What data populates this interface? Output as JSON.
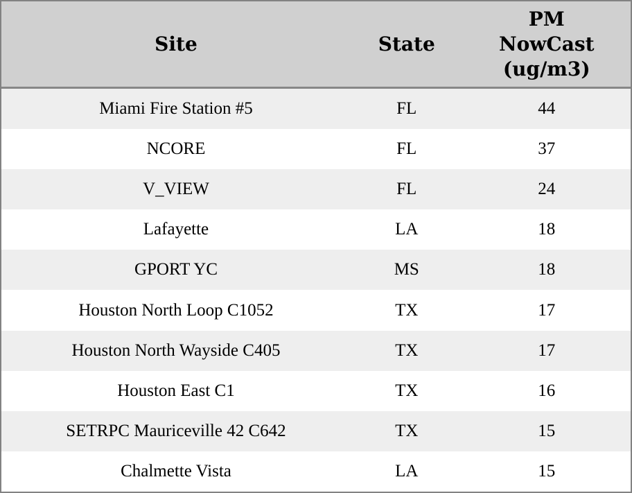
{
  "chart_data": {
    "type": "table",
    "columns": [
      "Site",
      "State",
      "PM NowCast (ug/m3)"
    ],
    "rows": [
      {
        "site": "Miami Fire Station #5",
        "state": "FL",
        "pm_nowcast": "44"
      },
      {
        "site": "NCORE",
        "state": "FL",
        "pm_nowcast": "37"
      },
      {
        "site": "V_VIEW",
        "state": "FL",
        "pm_nowcast": "24"
      },
      {
        "site": "Lafayette",
        "state": "LA",
        "pm_nowcast": "18"
      },
      {
        "site": "GPORT YC",
        "state": "MS",
        "pm_nowcast": "18"
      },
      {
        "site": "Houston North Loop C1052",
        "state": "TX",
        "pm_nowcast": "17"
      },
      {
        "site": "Houston North Wayside C405",
        "state": "TX",
        "pm_nowcast": "17"
      },
      {
        "site": "Houston East C1",
        "state": "TX",
        "pm_nowcast": "16"
      },
      {
        "site": "SETRPC Mauriceville 42 C642",
        "state": "TX",
        "pm_nowcast": "15"
      },
      {
        "site": "Chalmette Vista",
        "state": "LA",
        "pm_nowcast": "15"
      }
    ],
    "title": "",
    "legend": "none",
    "grid": "off"
  },
  "colors": {
    "header_bg": "#d0d0d0",
    "row_stripe_bg": "#eeeeee",
    "row_plain_bg": "#ffffff",
    "outer_border": "#828282",
    "header_divider": "#878787",
    "text": "#000000"
  }
}
